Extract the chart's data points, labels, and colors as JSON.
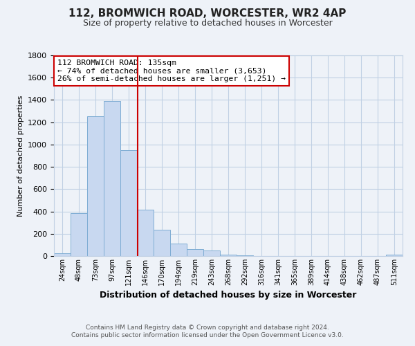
{
  "title": "112, BROMWICH ROAD, WORCESTER, WR2 4AP",
  "subtitle": "Size of property relative to detached houses in Worcester",
  "xlabel": "Distribution of detached houses by size in Worcester",
  "ylabel": "Number of detached properties",
  "bar_color": "#c8d8f0",
  "bar_edge_color": "#7fadd4",
  "bin_labels": [
    "24sqm",
    "48sqm",
    "73sqm",
    "97sqm",
    "121sqm",
    "146sqm",
    "170sqm",
    "194sqm",
    "219sqm",
    "243sqm",
    "268sqm",
    "292sqm",
    "316sqm",
    "341sqm",
    "365sqm",
    "389sqm",
    "414sqm",
    "438sqm",
    "462sqm",
    "487sqm",
    "511sqm"
  ],
  "bin_values": [
    25,
    385,
    1255,
    1390,
    950,
    415,
    235,
    110,
    65,
    50,
    10,
    5,
    0,
    0,
    0,
    0,
    0,
    0,
    0,
    0,
    15
  ],
  "vline_x_bin": 4.54,
  "vline_color": "#cc0000",
  "ylim": [
    0,
    1800
  ],
  "yticks": [
    0,
    200,
    400,
    600,
    800,
    1000,
    1200,
    1400,
    1600,
    1800
  ],
  "annotation_title": "112 BROMWICH ROAD: 135sqm",
  "annotation_line1": "← 74% of detached houses are smaller (3,653)",
  "annotation_line2": "26% of semi-detached houses are larger (1,251) →",
  "footer1": "Contains HM Land Registry data © Crown copyright and database right 2024.",
  "footer2": "Contains public sector information licensed under the Open Government Licence v3.0.",
  "bg_color": "#eef2f8",
  "plot_bg_color": "#eef2f8",
  "grid_color": "#c0d0e4"
}
